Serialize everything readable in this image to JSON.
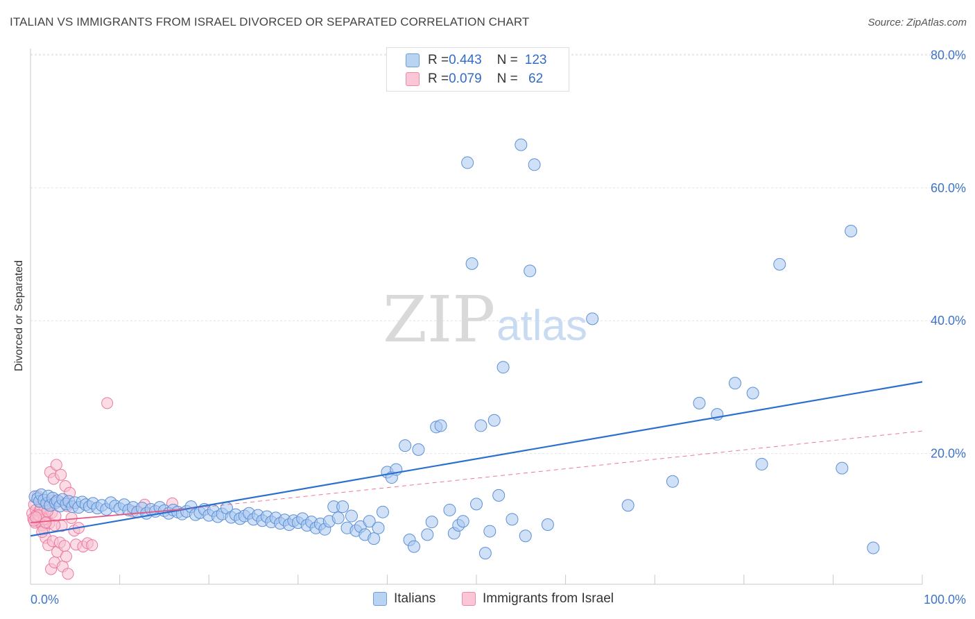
{
  "header": {
    "title": "ITALIAN VS IMMIGRANTS FROM ISRAEL DIVORCED OR SEPARATED CORRELATION CHART",
    "source": "Source: ZipAtlas.com"
  },
  "watermark": {
    "zip": "ZIP",
    "atlas": "atlas"
  },
  "legend": {
    "rows": [
      {
        "r_label": "R = ",
        "r_value": "0.443",
        "n_label": "N = ",
        "n_value": "123"
      },
      {
        "r_label": "R = ",
        "r_value": "0.079",
        "n_label": "N = ",
        "n_value": " 62"
      }
    ]
  },
  "colors": {
    "italians_fill": "#a9c8f0",
    "italians_stroke": "#5b8fd6",
    "italians_line": "#2b6fcf",
    "israel_fill": "#f8bfd0",
    "israel_stroke": "#ea7aa0",
    "israel_line": "#e8557f",
    "tick_label": "#3d74c9"
  },
  "chart_data": {
    "type": "scatter",
    "title": "ITALIAN VS IMMIGRANTS FROM ISRAEL DIVORCED OR SEPARATED CORRELATION CHART",
    "xlabel": "",
    "ylabel": "Divorced or Separated",
    "xlim": [
      0,
      100
    ],
    "ylim": [
      0,
      85
    ],
    "x_tick_labels": [
      "0.0%",
      "100.0%"
    ],
    "y_ticks": [
      20,
      40,
      60,
      80
    ],
    "y_tick_labels": [
      "20.0%",
      "40.0%",
      "60.0%",
      "80.0%"
    ],
    "grid": true,
    "legend_position": "bottom",
    "series": [
      {
        "name": "Italians",
        "points": [
          [
            0.5,
            13.5
          ],
          [
            0.8,
            13.2
          ],
          [
            1.0,
            12.8
          ],
          [
            1.2,
            13.8
          ],
          [
            1.5,
            13.0
          ],
          [
            1.8,
            12.5
          ],
          [
            2.0,
            13.6
          ],
          [
            2.2,
            12.2
          ],
          [
            2.5,
            13.3
          ],
          [
            2.8,
            12.6
          ],
          [
            3.0,
            12.9
          ],
          [
            3.3,
            12.1
          ],
          [
            3.6,
            13.1
          ],
          [
            4.0,
            12.4
          ],
          [
            4.3,
            12.8
          ],
          [
            4.7,
            12.0
          ],
          [
            5.0,
            12.6
          ],
          [
            5.4,
            11.9
          ],
          [
            5.8,
            12.7
          ],
          [
            6.2,
            12.3
          ],
          [
            6.6,
            12.0
          ],
          [
            7.0,
            12.5
          ],
          [
            7.5,
            11.8
          ],
          [
            8.0,
            12.2
          ],
          [
            8.5,
            11.6
          ],
          [
            9.0,
            12.6
          ],
          [
            9.5,
            12.1
          ],
          [
            10.0,
            11.7
          ],
          [
            10.5,
            12.3
          ],
          [
            11.0,
            11.5
          ],
          [
            11.5,
            11.9
          ],
          [
            12.0,
            11.2
          ],
          [
            12.5,
            11.8
          ],
          [
            13.0,
            11.0
          ],
          [
            13.5,
            11.6
          ],
          [
            14.0,
            11.3
          ],
          [
            14.5,
            11.9
          ],
          [
            15.0,
            11.4
          ],
          [
            15.5,
            11.0
          ],
          [
            16.0,
            11.5
          ],
          [
            16.5,
            11.2
          ],
          [
            17.0,
            10.9
          ],
          [
            17.5,
            11.3
          ],
          [
            18.0,
            12.0
          ],
          [
            18.5,
            10.8
          ],
          [
            19.0,
            11.1
          ],
          [
            19.5,
            11.6
          ],
          [
            20.0,
            10.7
          ],
          [
            20.5,
            11.4
          ],
          [
            21.0,
            10.5
          ],
          [
            21.5,
            10.9
          ],
          [
            22.0,
            11.8
          ],
          [
            22.5,
            10.4
          ],
          [
            23.0,
            10.8
          ],
          [
            23.5,
            10.2
          ],
          [
            24.0,
            10.6
          ],
          [
            24.5,
            11.0
          ],
          [
            25.0,
            10.1
          ],
          [
            25.5,
            10.7
          ],
          [
            26.0,
            9.9
          ],
          [
            26.5,
            10.5
          ],
          [
            27.0,
            9.7
          ],
          [
            27.5,
            10.3
          ],
          [
            28.0,
            9.5
          ],
          [
            28.5,
            10.0
          ],
          [
            29.0,
            9.3
          ],
          [
            29.5,
            9.9
          ],
          [
            30.0,
            9.6
          ],
          [
            30.5,
            10.2
          ],
          [
            31.0,
            9.2
          ],
          [
            31.5,
            9.7
          ],
          [
            32.0,
            8.8
          ],
          [
            32.5,
            9.4
          ],
          [
            33.0,
            8.6
          ],
          [
            33.5,
            9.8
          ],
          [
            34.0,
            12.0
          ],
          [
            34.5,
            10.3
          ],
          [
            35.0,
            12.0
          ],
          [
            35.5,
            8.8
          ],
          [
            36.0,
            10.6
          ],
          [
            36.5,
            8.4
          ],
          [
            37.0,
            9.0
          ],
          [
            37.5,
            7.8
          ],
          [
            38.0,
            9.8
          ],
          [
            38.5,
            7.2
          ],
          [
            39.0,
            8.8
          ],
          [
            39.5,
            11.2
          ],
          [
            40.0,
            17.2
          ],
          [
            40.5,
            16.4
          ],
          [
            41.0,
            17.6
          ],
          [
            42.0,
            21.2
          ],
          [
            42.5,
            7.0
          ],
          [
            43.0,
            6.0
          ],
          [
            43.5,
            20.6
          ],
          [
            44.5,
            7.8
          ],
          [
            45.0,
            9.7
          ],
          [
            45.5,
            24.0
          ],
          [
            46.0,
            24.2
          ],
          [
            47.0,
            11.5
          ],
          [
            47.5,
            8.0
          ],
          [
            48.0,
            9.2
          ],
          [
            48.5,
            9.8
          ],
          [
            49.0,
            63.8
          ],
          [
            49.5,
            48.6
          ],
          [
            50.0,
            12.4
          ],
          [
            50.5,
            24.2
          ],
          [
            51.0,
            5.0
          ],
          [
            51.5,
            8.3
          ],
          [
            52.0,
            25.0
          ],
          [
            52.5,
            13.7
          ],
          [
            53.0,
            33.0
          ],
          [
            54.0,
            10.1
          ],
          [
            55.0,
            66.5
          ],
          [
            55.5,
            7.6
          ],
          [
            56.0,
            47.5
          ],
          [
            56.5,
            63.5
          ],
          [
            58.0,
            9.3
          ],
          [
            63.0,
            40.3
          ],
          [
            67.0,
            12.2
          ],
          [
            72.0,
            15.8
          ],
          [
            75.0,
            27.6
          ],
          [
            77.0,
            25.9
          ],
          [
            79.0,
            30.6
          ],
          [
            81.0,
            29.1
          ],
          [
            82.0,
            18.4
          ],
          [
            84.0,
            48.5
          ],
          [
            91.0,
            17.8
          ],
          [
            92.0,
            53.5
          ],
          [
            94.5,
            5.8
          ]
        ],
        "trend": [
          [
            0,
            7.6
          ],
          [
            100,
            30.8
          ]
        ]
      },
      {
        "name": "Immigrants from Israel",
        "points": [
          [
            0.2,
            11.0
          ],
          [
            0.3,
            10.2
          ],
          [
            0.4,
            12.3
          ],
          [
            0.5,
            9.6
          ],
          [
            0.6,
            11.5
          ],
          [
            0.7,
            10.8
          ],
          [
            0.8,
            13.6
          ],
          [
            0.9,
            9.9
          ],
          [
            1.0,
            11.2
          ],
          [
            1.1,
            10.4
          ],
          [
            1.2,
            12.0
          ],
          [
            1.3,
            9.2
          ],
          [
            1.4,
            10.9
          ],
          [
            1.5,
            8.6
          ],
          [
            1.6,
            11.8
          ],
          [
            1.7,
            7.3
          ],
          [
            1.8,
            10.1
          ],
          [
            1.9,
            12.6
          ],
          [
            2.0,
            6.2
          ],
          [
            2.1,
            9.5
          ],
          [
            2.2,
            17.2
          ],
          [
            2.3,
            2.6
          ],
          [
            2.4,
            11.1
          ],
          [
            2.5,
            6.8
          ],
          [
            2.6,
            16.2
          ],
          [
            2.7,
            3.6
          ],
          [
            2.8,
            10.6
          ],
          [
            2.9,
            18.3
          ],
          [
            3.0,
            5.2
          ],
          [
            3.2,
            12.8
          ],
          [
            3.3,
            6.6
          ],
          [
            3.4,
            16.8
          ],
          [
            3.5,
            9.1
          ],
          [
            3.6,
            3.0
          ],
          [
            3.8,
            6.1
          ],
          [
            3.9,
            15.1
          ],
          [
            4.0,
            4.5
          ],
          [
            4.1,
            12.1
          ],
          [
            4.2,
            1.9
          ],
          [
            4.4,
            14.1
          ],
          [
            4.6,
            10.3
          ],
          [
            4.9,
            8.4
          ],
          [
            5.1,
            6.3
          ],
          [
            5.4,
            8.8
          ],
          [
            5.9,
            6.0
          ],
          [
            6.4,
            6.5
          ],
          [
            6.9,
            6.2
          ],
          [
            8.6,
            27.6
          ],
          [
            11.5,
            11.3
          ],
          [
            12.8,
            12.3
          ],
          [
            15.9,
            12.5
          ],
          [
            1.1,
            11.6
          ],
          [
            0.4,
            9.9
          ],
          [
            1.5,
            10.1
          ],
          [
            2.1,
            12.4
          ],
          [
            0.9,
            10.7
          ],
          [
            1.9,
            11.3
          ],
          [
            2.7,
            9.2
          ],
          [
            1.3,
            8.2
          ],
          [
            0.6,
            10.4
          ],
          [
            1.7,
            9.6
          ],
          [
            2.4,
            12.9
          ]
        ],
        "trend": [
          [
            0,
            9.6
          ],
          [
            17,
            11.6
          ]
        ],
        "trend_dashed": [
          [
            17,
            11.6
          ],
          [
            100,
            23.4
          ]
        ]
      }
    ]
  }
}
